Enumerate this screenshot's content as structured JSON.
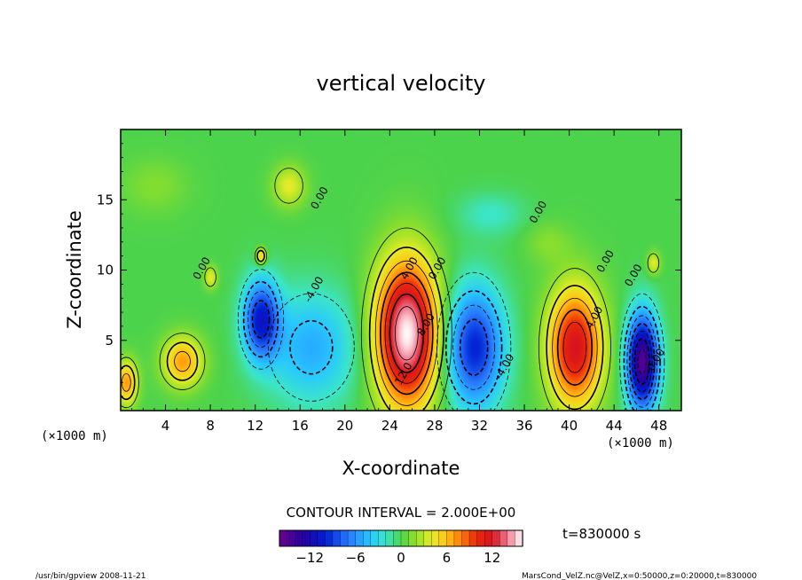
{
  "chart_data": {
    "type": "heatmap",
    "title": "vertical velocity",
    "xlabel": "X-coordinate",
    "ylabel": "Z-coordinate",
    "x_unit_label_left": "(×1000 m)",
    "x_unit_label_right": "(×1000 m)",
    "xlim": [
      0,
      50
    ],
    "ylim": [
      0,
      20
    ],
    "x_ticks": [
      4,
      8,
      12,
      16,
      20,
      24,
      28,
      32,
      36,
      40,
      44,
      48
    ],
    "y_ticks": [
      5,
      10,
      15
    ],
    "contour_interval_text": "CONTOUR INTERVAL = 2.000E+00",
    "time_text": "t=830000 s",
    "colorbar": {
      "range": [
        -16,
        16
      ],
      "ticks": [
        -12,
        -6,
        0,
        6,
        12
      ]
    },
    "contour_labels": [
      {
        "text": "0.00",
        "x": 18,
        "y": 15
      },
      {
        "text": "0.00",
        "x": 7.5,
        "y": 10
      },
      {
        "text": "-4.00",
        "x": 17.5,
        "y": 8.5
      },
      {
        "text": "4.00",
        "x": 26,
        "y": 10
      },
      {
        "text": "0.00",
        "x": 28.5,
        "y": 10
      },
      {
        "text": "8.00",
        "x": 27.5,
        "y": 6
      },
      {
        "text": "12.0",
        "x": 25.5,
        "y": 2.5
      },
      {
        "text": "-4.00",
        "x": 34.5,
        "y": 3
      },
      {
        "text": "0.00",
        "x": 37.5,
        "y": 14
      },
      {
        "text": "0.00",
        "x": 43.5,
        "y": 10.5
      },
      {
        "text": "4.00",
        "x": 42.5,
        "y": 6.5
      },
      {
        "text": "0.00",
        "x": 46,
        "y": 9.5
      },
      {
        "text": "0.00",
        "x": 48,
        "y": 3.5
      }
    ],
    "features": [
      {
        "x": 25.5,
        "y": 5.5,
        "peak": 16,
        "rx": 2.8,
        "ry": 5.2
      },
      {
        "x": 40.5,
        "y": 4.5,
        "peak": 12,
        "rx": 2.4,
        "ry": 4.2
      },
      {
        "x": 31.5,
        "y": 4.5,
        "peak": -10,
        "rx": 2.6,
        "ry": 4.2
      },
      {
        "x": 12.5,
        "y": 6.5,
        "peak": -10,
        "rx": 1.6,
        "ry": 2.8
      },
      {
        "x": 17,
        "y": 4.5,
        "peak": -5,
        "rx": 4,
        "ry": 4
      },
      {
        "x": 46.5,
        "y": 3.5,
        "peak": -15,
        "rx": 1.4,
        "ry": 3.4
      },
      {
        "x": 5.5,
        "y": 3.5,
        "peak": 7,
        "rx": 1.8,
        "ry": 1.8
      },
      {
        "x": 0.5,
        "y": 2,
        "peak": 7,
        "rx": 1,
        "ry": 1.6
      },
      {
        "x": 15,
        "y": 16,
        "peak": 4,
        "rx": 1.5,
        "ry": 1.5
      },
      {
        "x": 12.5,
        "y": 11,
        "peak": 6,
        "rx": 0.5,
        "ry": 0.6
      },
      {
        "x": 8,
        "y": 9.5,
        "peak": 4,
        "rx": 0.6,
        "ry": 0.8
      },
      {
        "x": 47.5,
        "y": 10.5,
        "peak": 4,
        "rx": 0.6,
        "ry": 0.8
      },
      {
        "x": 33,
        "y": 14,
        "peak": -2,
        "rx": 3,
        "ry": 1.5
      },
      {
        "x": 38,
        "y": 12,
        "peak": 1.5,
        "rx": 2,
        "ry": 1.5
      },
      {
        "x": 3,
        "y": 16,
        "peak": 1.5,
        "rx": 3,
        "ry": 2
      }
    ]
  },
  "footer": {
    "left": "/usr/bin/gpview  2008-11-21",
    "right": "MarsCond_VelZ.nc@VelZ,x=0:50000,z=0:20000,t=830000"
  },
  "colors": {
    "background": "#4cd34c",
    "axis": "#000000"
  }
}
